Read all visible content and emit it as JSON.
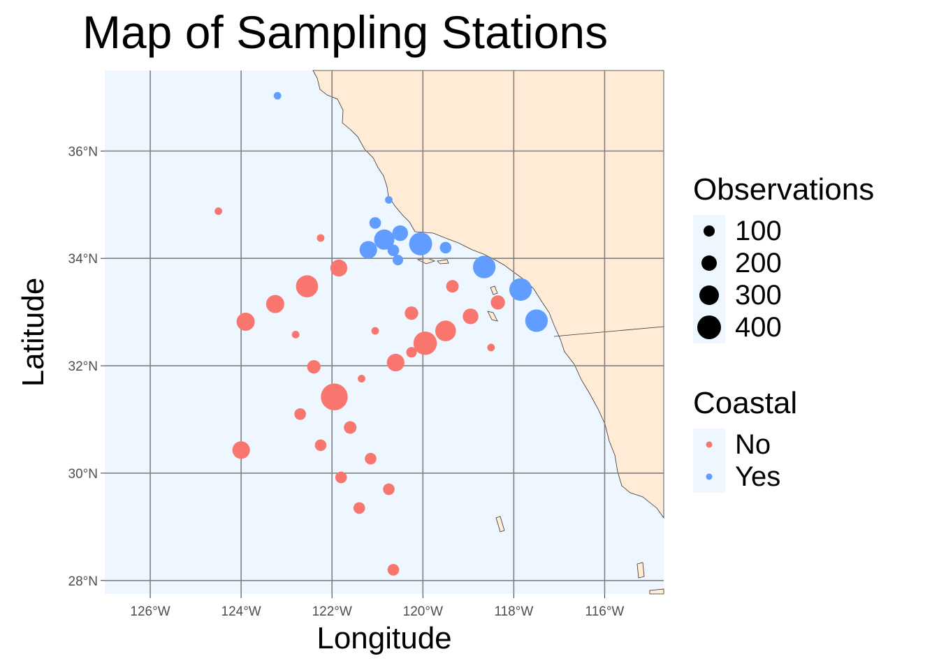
{
  "title": "Map of Sampling Stations",
  "xlabel": "Longitude",
  "ylabel": "Latitude",
  "colors": {
    "ocean": "#eef6ff",
    "land": "#ffebd6",
    "grid": "#808080",
    "coastal_no": "#f8766d",
    "coastal_yes": "#619cff"
  },
  "legends": {
    "size": {
      "title": "Observations",
      "items": [
        "100",
        "200",
        "300",
        "400"
      ]
    },
    "color": {
      "title": "Coastal",
      "items": [
        "No",
        "Yes"
      ]
    }
  },
  "chart_data": {
    "type": "scatter",
    "title": "Map of Sampling Stations",
    "xlabel": "Longitude",
    "ylabel": "Latitude",
    "xlim": [
      -127.0,
      -114.7
    ],
    "ylim": [
      27.75,
      37.5
    ],
    "x_ticks": [
      -126,
      -124,
      -122,
      -120,
      -118,
      -116
    ],
    "x_tick_labels": [
      "126°W",
      "124°W",
      "122°W",
      "120°W",
      "118°W",
      "116°W"
    ],
    "y_ticks": [
      28,
      30,
      32,
      34,
      36
    ],
    "y_tick_labels": [
      "28°N",
      "30°N",
      "32°N",
      "34°N",
      "36°N"
    ],
    "grid": true,
    "legend_position": "right",
    "size_variable": "Observations",
    "color_variable": "Coastal",
    "stations": [
      {
        "lon": -123.2,
        "lat": 37.03,
        "obs": 10,
        "coastal": "Yes"
      },
      {
        "lon": -120.75,
        "lat": 35.09,
        "obs": 10,
        "coastal": "Yes"
      },
      {
        "lon": -121.05,
        "lat": 34.66,
        "obs": 40,
        "coastal": "Yes"
      },
      {
        "lon": -120.5,
        "lat": 34.47,
        "obs": 90,
        "coastal": "Yes"
      },
      {
        "lon": -120.85,
        "lat": 34.35,
        "obs": 170,
        "coastal": "Yes"
      },
      {
        "lon": -121.2,
        "lat": 34.16,
        "obs": 120,
        "coastal": "Yes"
      },
      {
        "lon": -120.05,
        "lat": 34.27,
        "obs": 230,
        "coastal": "Yes"
      },
      {
        "lon": -120.65,
        "lat": 34.15,
        "obs": 40,
        "coastal": "Yes"
      },
      {
        "lon": -120.55,
        "lat": 33.97,
        "obs": 30,
        "coastal": "Yes"
      },
      {
        "lon": -119.5,
        "lat": 34.2,
        "obs": 40,
        "coastal": "Yes"
      },
      {
        "lon": -118.65,
        "lat": 33.84,
        "obs": 220,
        "coastal": "Yes"
      },
      {
        "lon": -117.85,
        "lat": 33.42,
        "obs": 220,
        "coastal": "Yes"
      },
      {
        "lon": -117.5,
        "lat": 32.84,
        "obs": 220,
        "coastal": "Yes"
      },
      {
        "lon": -124.5,
        "lat": 34.88,
        "obs": 10,
        "coastal": "No"
      },
      {
        "lon": -122.25,
        "lat": 34.38,
        "obs": 10,
        "coastal": "No"
      },
      {
        "lon": -121.85,
        "lat": 33.82,
        "obs": 110,
        "coastal": "No"
      },
      {
        "lon": -122.55,
        "lat": 33.48,
        "obs": 210,
        "coastal": "No"
      },
      {
        "lon": -123.25,
        "lat": 33.15,
        "obs": 130,
        "coastal": "No"
      },
      {
        "lon": -123.9,
        "lat": 32.82,
        "obs": 130,
        "coastal": "No"
      },
      {
        "lon": -122.8,
        "lat": 32.58,
        "obs": 10,
        "coastal": "No"
      },
      {
        "lon": -121.05,
        "lat": 32.65,
        "obs": 10,
        "coastal": "No"
      },
      {
        "lon": -120.25,
        "lat": 32.98,
        "obs": 60,
        "coastal": "No"
      },
      {
        "lon": -119.35,
        "lat": 33.48,
        "obs": 50,
        "coastal": "No"
      },
      {
        "lon": -118.35,
        "lat": 33.18,
        "obs": 70,
        "coastal": "No"
      },
      {
        "lon": -118.95,
        "lat": 32.92,
        "obs": 90,
        "coastal": "No"
      },
      {
        "lon": -119.5,
        "lat": 32.65,
        "obs": 180,
        "coastal": "No"
      },
      {
        "lon": -119.95,
        "lat": 32.42,
        "obs": 240,
        "coastal": "No"
      },
      {
        "lon": -120.25,
        "lat": 32.25,
        "obs": 30,
        "coastal": "No"
      },
      {
        "lon": -120.6,
        "lat": 32.06,
        "obs": 120,
        "coastal": "No"
      },
      {
        "lon": -118.5,
        "lat": 32.34,
        "obs": 10,
        "coastal": "No"
      },
      {
        "lon": -122.4,
        "lat": 31.98,
        "obs": 60,
        "coastal": "No"
      },
      {
        "lon": -121.35,
        "lat": 31.76,
        "obs": 10,
        "coastal": "No"
      },
      {
        "lon": -121.95,
        "lat": 31.42,
        "obs": 330,
        "coastal": "No"
      },
      {
        "lon": -122.7,
        "lat": 31.1,
        "obs": 40,
        "coastal": "No"
      },
      {
        "lon": -121.6,
        "lat": 30.85,
        "obs": 50,
        "coastal": "No"
      },
      {
        "lon": -122.25,
        "lat": 30.52,
        "obs": 40,
        "coastal": "No"
      },
      {
        "lon": -124.0,
        "lat": 30.43,
        "obs": 120,
        "coastal": "No"
      },
      {
        "lon": -121.15,
        "lat": 30.27,
        "obs": 40,
        "coastal": "No"
      },
      {
        "lon": -121.8,
        "lat": 29.92,
        "obs": 40,
        "coastal": "No"
      },
      {
        "lon": -120.75,
        "lat": 29.7,
        "obs": 40,
        "coastal": "No"
      },
      {
        "lon": -121.4,
        "lat": 29.35,
        "obs": 40,
        "coastal": "No"
      },
      {
        "lon": -120.65,
        "lat": 28.2,
        "obs": 40,
        "coastal": "No"
      }
    ]
  }
}
